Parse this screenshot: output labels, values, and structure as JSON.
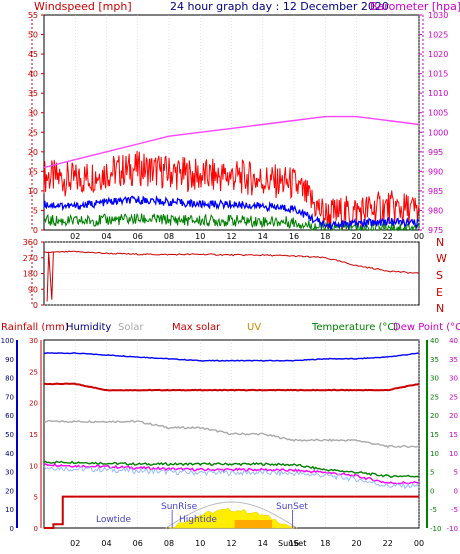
{
  "header": {
    "left_title": "Windspeed [mph]",
    "center_title": "24 hour graph day : 12 December 2020",
    "right_title": "Barometer [hpa]"
  },
  "wind_panel": {
    "left_ticks": [
      "0",
      "5",
      "10",
      "15",
      "20",
      "25",
      "30",
      "35",
      "40",
      "45",
      "50",
      "55"
    ],
    "right_ticks": [
      "975",
      "980",
      "985",
      "990",
      "995",
      "1000",
      "1005",
      "1010",
      "1015",
      "1020",
      "1025",
      "1030"
    ],
    "x_ticks": [
      "02",
      "04",
      "06",
      "08",
      "10",
      "12",
      "14",
      "16",
      "18",
      "20",
      "22",
      "00"
    ]
  },
  "dir_panel": {
    "left_ticks": [
      "0",
      "90",
      "180",
      "270",
      "360"
    ],
    "right_labels": [
      "N",
      "W",
      "S",
      "E",
      "N"
    ]
  },
  "bottom_panel": {
    "header_labels": {
      "rainfall": "Rainfall (mm)",
      "humidity": "Humidity",
      "solar": "Solar",
      "max_solar": "Max solar",
      "uv": "UV",
      "temperature": "Temperature (°C)",
      "dewpoint": "Dew Point (°C)"
    },
    "humidity_ticks": [
      "0",
      "10",
      "20",
      "30",
      "40",
      "50",
      "60",
      "70",
      "80",
      "90",
      "100"
    ],
    "rain_ticks": [
      "0",
      "5",
      "10",
      "15",
      "20",
      "25",
      "30"
    ],
    "temp_ticks": [
      "-10",
      "-5",
      "0",
      "5",
      "10",
      "15",
      "20",
      "25",
      "30",
      "35",
      "40"
    ],
    "x_ticks": [
      "02",
      "04",
      "06",
      "08",
      "10",
      "12",
      "14",
      "16",
      "18",
      "20",
      "22",
      "00"
    ],
    "annotations": {
      "lowtide": "Lowtide",
      "sunrise": "SunRise",
      "hightide": "Hightide",
      "sunset": "SunSet",
      "sunset_bottom": "SunSet"
    }
  },
  "colors": {
    "wind_gust": "#ff0000",
    "wind_avg": "#0000ff",
    "wind_low": "#008000",
    "barometer": "#ff44ff",
    "direction": "#cc0000",
    "humidity": "#0000ff",
    "solar": "#aaaaaa",
    "max_solar": "#cc0000",
    "uv": "#cc8800",
    "temperature": "#008000",
    "dewpoint": "#ff00ff",
    "rain": "#cc0000"
  },
  "chart_data": [
    {
      "type": "line",
      "title": "24 hour graph day : 12 December 2020",
      "ylabel": "Windspeed [mph]",
      "y2label": "Barometer [hpa]",
      "x": [
        "00",
        "02",
        "04",
        "06",
        "08",
        "10",
        "12",
        "14",
        "16",
        "18",
        "20",
        "22",
        "00"
      ],
      "ylim": [
        0,
        55
      ],
      "y2lim": [
        975,
        1030
      ],
      "series": [
        {
          "name": "Windspeed [mph]",
          "values": [
            12,
            11,
            13,
            14,
            13,
            12,
            12,
            11,
            10,
            2,
            3,
            4,
            3
          ]
        },
        {
          "name": "Barometer [hpa]",
          "values": [
            991,
            993,
            995,
            997,
            999,
            1000,
            1001,
            1002,
            1003,
            1004,
            1004,
            1003,
            1002
          ]
        }
      ]
    },
    {
      "type": "line",
      "ylim": [
        0,
        360
      ],
      "x": [
        "00",
        "02",
        "04",
        "06",
        "08",
        "10",
        "12",
        "14",
        "16",
        "18",
        "20",
        "22",
        "00"
      ],
      "series": [
        {
          "values": [
            300,
            305,
            295,
            290,
            288,
            290,
            286,
            285,
            280,
            270,
            225,
            195,
            180
          ]
        }
      ]
    },
    {
      "type": "line",
      "x": [
        "00",
        "02",
        "04",
        "06",
        "08",
        "10",
        "12",
        "14",
        "16",
        "18",
        "20",
        "22",
        "00"
      ],
      "series": [
        {
          "name": "Humidity",
          "values": [
            93,
            93,
            92,
            91,
            90,
            89,
            89,
            89,
            89,
            90,
            90,
            91,
            93
          ]
        },
        {
          "name": "Max solar",
          "values": [
            23,
            23,
            22,
            22,
            22,
            22,
            22,
            22,
            22,
            22,
            22,
            22,
            23
          ]
        },
        {
          "name": "Solar",
          "values": [
            17,
            17,
            17,
            17,
            16,
            16,
            15,
            15,
            14,
            14,
            14,
            13,
            13
          ]
        },
        {
          "name": "Temperature (°C)",
          "values": [
            7.5,
            7.5,
            7.2,
            7.0,
            7.0,
            7.0,
            7.0,
            7.0,
            6.8,
            5.5,
            4.8,
            3.8,
            3.8
          ]
        },
        {
          "name": "Dew Point (°C)",
          "values": [
            7,
            6.5,
            6.3,
            6.0,
            5.7,
            5.5,
            5.5,
            5.5,
            5.3,
            4.8,
            3.8,
            2.0,
            2.0
          ]
        },
        {
          "name": "Rainfall (mm)",
          "values": [
            0,
            0.3,
            2,
            4,
            5,
            5,
            5,
            5,
            5,
            5,
            5,
            5,
            5
          ]
        }
      ]
    }
  ]
}
